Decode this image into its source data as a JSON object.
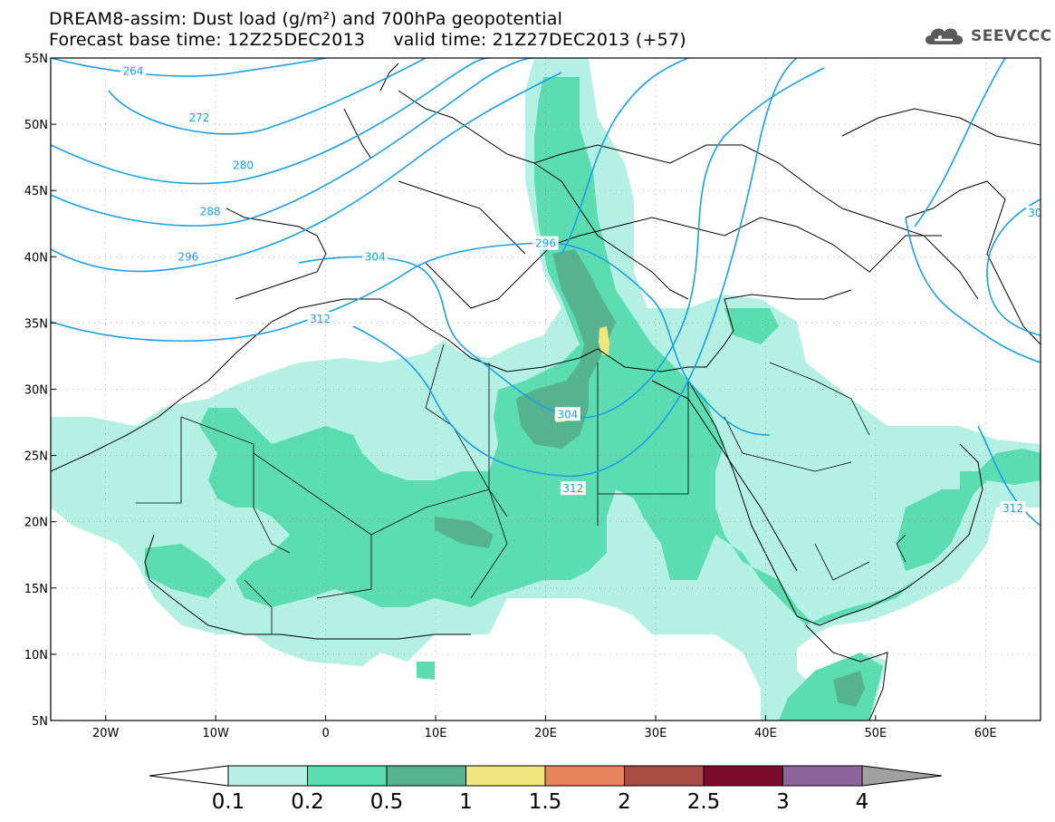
{
  "title": {
    "line1": "DREAM8-assim: Dust load (g/m²) and 700hPa geopotential",
    "line2": "Forecast base time: 12Z25DEC2013     valid time: 21Z27DEC2013 (+57)"
  },
  "logo": {
    "text": "SEEVCCC",
    "icon": "cloud-icon"
  },
  "map": {
    "lon_range": [
      -25,
      65
    ],
    "lat_range": [
      5,
      55
    ],
    "lon_ticks": [
      {
        "lon": -20,
        "label": "20W"
      },
      {
        "lon": -10,
        "label": "10W"
      },
      {
        "lon": 0,
        "label": "0"
      },
      {
        "lon": 10,
        "label": "10E"
      },
      {
        "lon": 20,
        "label": "20E"
      },
      {
        "lon": 30,
        "label": "30E"
      },
      {
        "lon": 40,
        "label": "40E"
      },
      {
        "lon": 50,
        "label": "50E"
      },
      {
        "lon": 60,
        "label": "60E"
      }
    ],
    "lat_ticks": [
      {
        "lat": 55,
        "label": "55N"
      },
      {
        "lat": 50,
        "label": "50N"
      },
      {
        "lat": 45,
        "label": "45N"
      },
      {
        "lat": 40,
        "label": "40N"
      },
      {
        "lat": 35,
        "label": "35N"
      },
      {
        "lat": 30,
        "label": "30N"
      },
      {
        "lat": 25,
        "label": "25N"
      },
      {
        "lat": 20,
        "label": "20N"
      },
      {
        "lat": 15,
        "label": "15N"
      },
      {
        "lat": 10,
        "label": "10N"
      },
      {
        "lat": 5,
        "label": "5N"
      }
    ],
    "contour_color": "#1aa0e8",
    "contour_labels": [
      {
        "text": "264",
        "lon": -17.5,
        "lat": 54.0
      },
      {
        "text": "272",
        "lon": -11.5,
        "lat": 50.5
      },
      {
        "text": "280",
        "lon": -7.5,
        "lat": 46.9
      },
      {
        "text": "288",
        "lon": -10.5,
        "lat": 43.4
      },
      {
        "text": "296",
        "lon": -12.5,
        "lat": 40.0
      },
      {
        "text": "304",
        "lon": 4.5,
        "lat": 40.0
      },
      {
        "text": "312",
        "lon": -0.5,
        "lat": 35.3
      },
      {
        "text": "296",
        "lon": 20.0,
        "lat": 41.0
      },
      {
        "text": "304",
        "lon": 22.0,
        "lat": 28.1
      },
      {
        "text": "312",
        "lon": 22.5,
        "lat": 22.5
      },
      {
        "text": "312",
        "lon": 62.5,
        "lat": 21.0
      },
      {
        "text": "30",
        "lon": 64.5,
        "lat": 43.3
      }
    ]
  },
  "colorbar": {
    "levels": [
      "0.1",
      "0.2",
      "0.5",
      "1",
      "1.5",
      "2",
      "2.5",
      "3",
      "4"
    ],
    "colors": [
      "#b4f0e3",
      "#5cdcb1",
      "#55b48f",
      "#f0e67e",
      "#e8855e",
      "#a94c43",
      "#7a0d2c",
      "#8b659c"
    ],
    "under_color": "#ffffff",
    "over_color": "#a0a0a0"
  },
  "dust_colors": {
    "light": "#b4f0e3",
    "medium": "#5cdcb1",
    "dark": "#55b48f",
    "yellow": "#f0e67e"
  }
}
